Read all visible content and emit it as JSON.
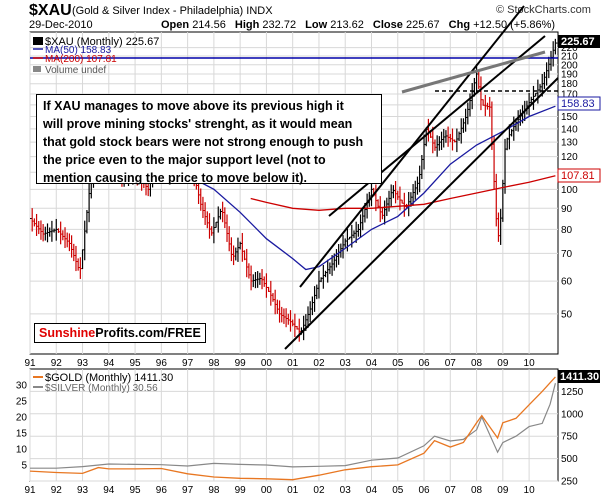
{
  "header": {
    "ticker": "$XAU",
    "name": "(Gold & Silver Index - Philadelphia)",
    "exchange": "INDX",
    "date": "29-Dec-2010",
    "open_label": "Open",
    "open": "214.56",
    "high_label": "High",
    "high": "232.72",
    "low_label": "Low",
    "low": "213.62",
    "close_label": "Close",
    "close": "225.67",
    "chg_label": "Chg",
    "chg": "+12.50 (+5.86%)",
    "watermark": "© StockCharts.com"
  },
  "main_legend": {
    "price": "$XAU (Monthly) 225.67",
    "ma50": "MA(50) 158.83",
    "ma200": "MA(200) 107.81",
    "volume": "Volume undef"
  },
  "annotation": {
    "lines": [
      "If XAU manages to move above its previous high it",
      "will prove mining stocks' strenght, as it would mean",
      "that gold stock bears were not strong enough to push",
      "the price even to the major support level (not to",
      "mention causing the price to move below it)."
    ]
  },
  "badge": {
    "part1": "Sunshine",
    "part2": "Profits.com/FREE"
  },
  "lower_legend": {
    "gold": "$GOLD (Monthly) 1411.30",
    "silver": "$SILVER (Monthly) 30.56"
  },
  "price_tags": {
    "close": "225.67",
    "ma50": "158.83",
    "ma200": "107.81",
    "gold": "1411.30"
  },
  "colors": {
    "price_up": "#000000",
    "price_down": "#cc0000",
    "ma50": "#1a1aa0",
    "ma200": "#cc0000",
    "trendline": "#000000",
    "horizontal_line": "#0000aa",
    "gold": "#e87722",
    "silver": "#888888",
    "grid": "#d8d8d8"
  },
  "chart_data": [
    {
      "type": "line",
      "title": "$XAU (Gold & Silver Index - Philadelphia) INDX",
      "scale": "log",
      "ylim": [
        40,
        240
      ],
      "y_ticks": [
        50,
        60,
        70,
        80,
        90,
        100,
        110,
        120,
        130,
        140,
        150,
        160,
        170,
        180,
        190,
        200,
        210,
        220
      ],
      "x_ticks": [
        "91",
        "92",
        "93",
        "94",
        "95",
        "96",
        "97",
        "98",
        "99",
        "00",
        "01",
        "02",
        "03",
        "04",
        "05",
        "06",
        "07",
        "08",
        "09",
        "10"
      ],
      "x_range": [
        1991.0,
        2011.1
      ],
      "grid": true,
      "series": [
        {
          "name": "$XAU (Monthly) 225.67",
          "x": [
            1991.0,
            1991.5,
            1992.0,
            1992.5,
            1992.9,
            1993.3,
            1993.7,
            1994.0,
            1994.5,
            1995.0,
            1995.5,
            1996.1,
            1996.5,
            1997.0,
            1997.5,
            1997.9,
            1998.3,
            1998.7,
            1999.0,
            1999.4,
            1999.8,
            2000.2,
            2000.5,
            2000.9,
            2001.3,
            2001.7,
            2002.0,
            2002.5,
            2003.0,
            2003.5,
            2004.0,
            2004.4,
            2004.8,
            2005.3,
            2005.8,
            2006.1,
            2006.4,
            2006.8,
            2007.2,
            2007.6,
            2008.0,
            2008.2,
            2008.5,
            2008.8,
            2008.9,
            2009.1,
            2009.5,
            2010.0,
            2010.5,
            2010.8,
            2011.0
          ],
          "values": [
            85,
            78,
            80,
            74,
            63,
            104,
            128,
            118,
            106,
            110,
            100,
            152,
            133,
            126,
            92,
            78,
            90,
            68,
            74,
            60,
            61,
            55,
            50,
            48,
            45,
            52,
            60,
            66,
            75,
            80,
            100,
            86,
            100,
            90,
            105,
            142,
            126,
            135,
            130,
            150,
            190,
            160,
            158,
            75,
            82,
            130,
            145,
            162,
            180,
            205,
            225.67
          ]
        },
        {
          "name": "MA(50) 158.83",
          "x": [
            1995.2,
            1996,
            1997,
            1998,
            1999,
            2000,
            2001,
            2001.5,
            2002,
            2003,
            2004,
            2005,
            2006,
            2007,
            2008,
            2009,
            2010,
            2011.0
          ],
          "values": [
            110,
            112,
            108,
            100,
            88,
            76,
            68,
            64,
            65,
            72,
            80,
            86,
            98,
            115,
            128,
            138,
            150,
            158.83
          ]
        },
        {
          "name": "MA(200) 107.81",
          "x": [
            1999.4,
            2000,
            2001,
            2002,
            2003,
            2004,
            2005,
            2006,
            2007,
            2008,
            2009,
            2010,
            2011.0
          ],
          "values": [
            95,
            93,
            90,
            89,
            90,
            90,
            91,
            92,
            95,
            98,
            101,
            104,
            107.81
          ]
        }
      ]
    },
    {
      "type": "line",
      "ylim_left": [
        0,
        35
      ],
      "ylim_right": [
        250,
        1500
      ],
      "y_ticks_left": [
        5,
        10,
        15,
        20,
        25,
        30
      ],
      "y_ticks_right": [
        250,
        500,
        750,
        1000,
        1250
      ],
      "x_ticks": [
        "91",
        "92",
        "93",
        "94",
        "95",
        "96",
        "97",
        "98",
        "99",
        "00",
        "01",
        "02",
        "03",
        "04",
        "05",
        "06",
        "07",
        "08",
        "09",
        "10"
      ],
      "series": [
        {
          "name": "$GOLD (Monthly) 1411.30",
          "axis": "right",
          "x": [
            1991,
            1992,
            1993,
            1993.6,
            1994,
            1995,
            1996,
            1997,
            1998,
            1999,
            2000,
            2001,
            2002,
            2003,
            2004,
            2005,
            2006,
            2006.4,
            2007,
            2007.5,
            2008,
            2008.2,
            2008.8,
            2009,
            2009.5,
            2010,
            2010.5,
            2011.0
          ],
          "values": [
            360,
            345,
            335,
            400,
            385,
            385,
            390,
            330,
            295,
            280,
            275,
            265,
            315,
            375,
            410,
            430,
            560,
            700,
            630,
            680,
            900,
            980,
            730,
            900,
            950,
            1100,
            1250,
            1411.3
          ]
        },
        {
          "name": "$SILVER (Monthly) 30.56",
          "axis": "left",
          "x": [
            1991,
            1992,
            1993,
            1994,
            1995,
            1996,
            1997,
            1998,
            1999,
            2000,
            2001,
            2002,
            2003,
            2004,
            2005,
            2006,
            2006.4,
            2007,
            2007.5,
            2008,
            2008.2,
            2008.8,
            2009,
            2009.5,
            2010,
            2010.5,
            2010.8,
            2011.0
          ],
          "values": [
            4,
            4,
            4.5,
            5.3,
            5.2,
            5.1,
            4.7,
            5.5,
            5.2,
            5,
            4.4,
            4.6,
            4.8,
            6.5,
            7.2,
            11,
            14,
            12.5,
            13,
            16,
            20,
            9,
            12,
            14,
            17,
            18,
            24,
            30.56
          ]
        }
      ]
    }
  ]
}
